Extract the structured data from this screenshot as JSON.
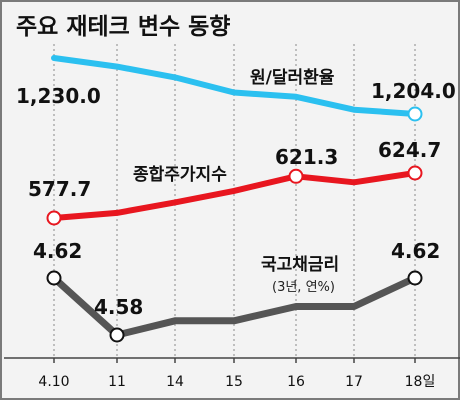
{
  "chart_data": {
    "type": "line",
    "title": "주요 재테크 변수 동향",
    "categories": [
      "4.10",
      "11",
      "14",
      "15",
      "16",
      "17",
      "18일"
    ],
    "series": [
      {
        "name": "원/달러환율",
        "values": [
          1230.0,
          1226.0,
          1221.0,
          1214.0,
          1212.0,
          1206.0,
          1204.0
        ],
        "color": "#2bc0f0",
        "labels": {
          "first": "1,230.0",
          "last": "1,204.0"
        }
      },
      {
        "name": "종합주가지수",
        "values": [
          577.7,
          583.0,
          594.0,
          606.0,
          621.3,
          615.0,
          624.7
        ],
        "color": "#e8161f",
        "labels": {
          "first": "577.7",
          "p4": "621.3",
          "last": "624.7"
        }
      },
      {
        "name": "국고채금리",
        "subtitle": "(3년, 연%)",
        "values": [
          4.62,
          4.58,
          4.59,
          4.59,
          4.6,
          4.6,
          4.62
        ],
        "color": "#555555",
        "labels": {
          "first": "4.62",
          "p1": "4.58",
          "last": "4.62"
        }
      }
    ],
    "grid": "vertical-dashed",
    "legend": "inline-labels"
  }
}
